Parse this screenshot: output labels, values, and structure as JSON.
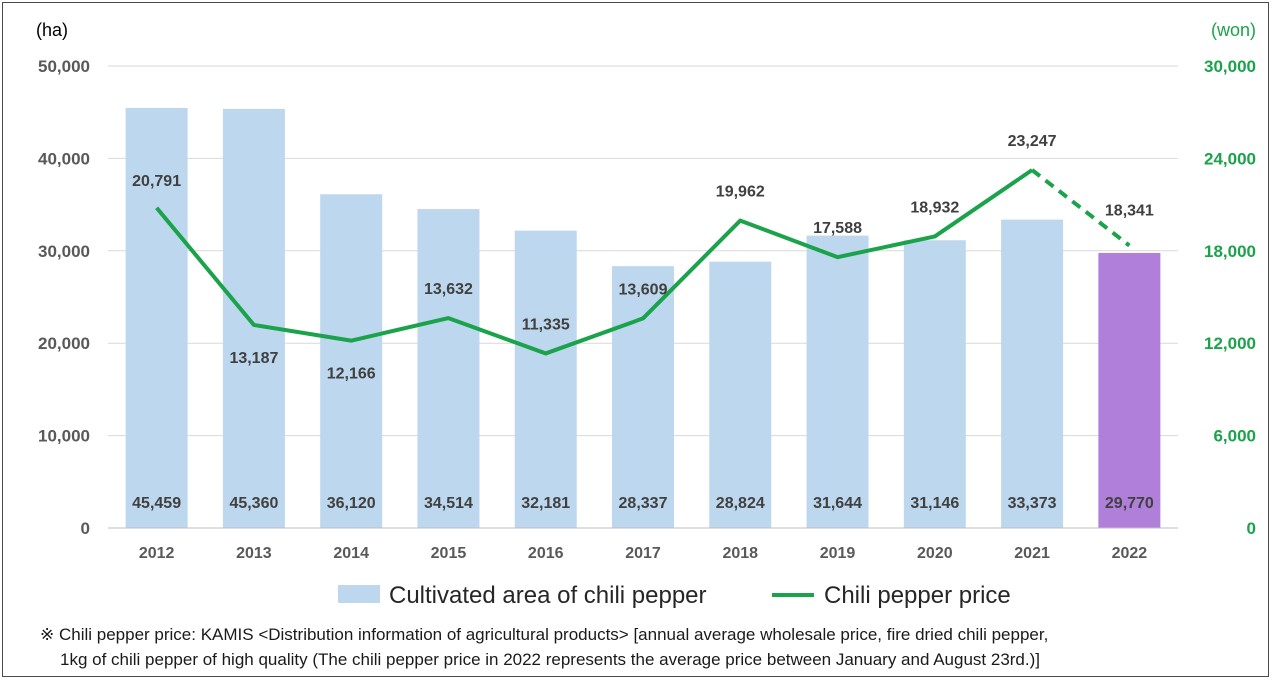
{
  "chart_data": {
    "type": "bar+line",
    "categories": [
      "2012",
      "2013",
      "2014",
      "2015",
      "2016",
      "2017",
      "2018",
      "2019",
      "2020",
      "2021",
      "2022"
    ],
    "series": [
      {
        "name": "Cultivated area of chili pepper",
        "type": "bar",
        "axis": "left",
        "values": [
          45459,
          45360,
          36120,
          34514,
          32181,
          28337,
          28824,
          31644,
          31146,
          33373,
          29770
        ],
        "labels": [
          "45,459",
          "45,360",
          "36,120",
          "34,514",
          "32,181",
          "28,337",
          "28,824",
          "31,644",
          "31,146",
          "33,373",
          "29,770"
        ],
        "color": "#bdd7ee",
        "highlight_color": "#b07fd9",
        "highlight_index": 10
      },
      {
        "name": "Chili pepper price",
        "type": "line",
        "axis": "right",
        "values": [
          20791,
          13187,
          12166,
          13632,
          11335,
          13609,
          19962,
          17588,
          18932,
          23247,
          18341
        ],
        "labels": [
          "20,791",
          "13,187",
          "12,166",
          "13,632",
          "11,335",
          "13,609",
          "19,962",
          "17,588",
          "18,932",
          "23,247",
          "18,341"
        ],
        "color": "#1aa34a",
        "dashed_from_index": 9
      }
    ],
    "y_left": {
      "unit": "(ha)",
      "ylim": [
        0,
        50000
      ],
      "ticks": [
        0,
        10000,
        20000,
        30000,
        40000,
        50000
      ],
      "tick_labels": [
        "0",
        "10,000",
        "20,000",
        "30,000",
        "40,000",
        "50,000"
      ]
    },
    "y_right": {
      "unit": "(won)",
      "ylim": [
        0,
        30000
      ],
      "ticks": [
        0,
        6000,
        12000,
        18000,
        24000,
        30000
      ],
      "tick_labels": [
        "0",
        "6,000",
        "12,000",
        "18,000",
        "24,000",
        "30,000"
      ]
    },
    "grid": true,
    "legend_position": "bottom"
  },
  "note": {
    "line1": "※ Chili pepper price: KAMIS <Distribution information of agricultural products> [annual average wholesale price, fire dried chili pepper,",
    "line2": "1kg of chili pepper of high quality (The chili pepper price in 2022 represents the average price between January and August 23rd.)]"
  }
}
